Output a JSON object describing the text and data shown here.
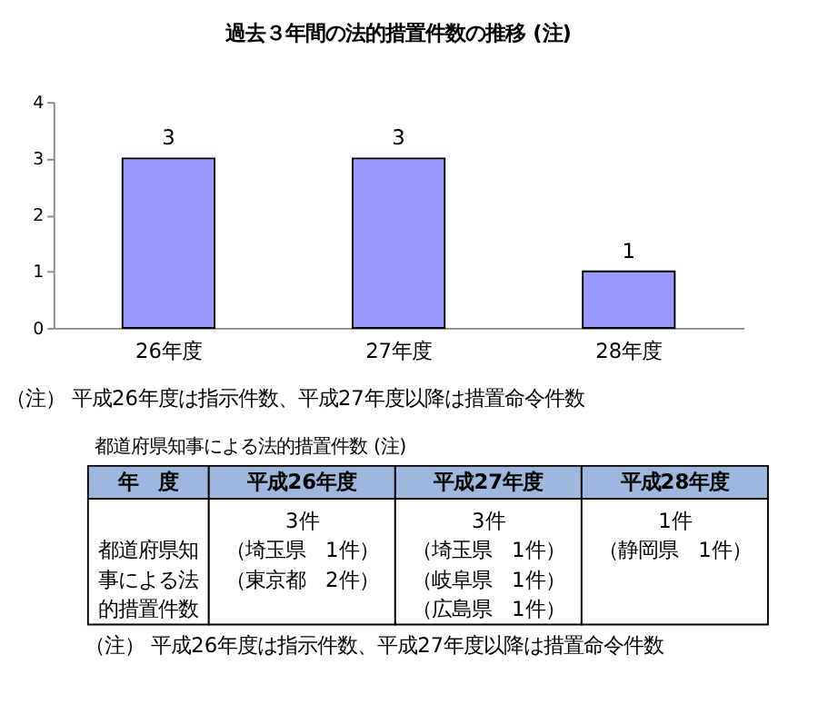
{
  "chart_data": [
    {
      "type": "bar",
      "title": "過去３年間の法的措置件数の推移 (注)",
      "categories": [
        "26年度",
        "27年度",
        "28年度"
      ],
      "values": [
        3,
        3,
        1
      ],
      "color": "#9999ff",
      "ylim": [
        0,
        4
      ],
      "yticks": [
        0,
        1,
        2,
        3,
        4
      ],
      "grid": false,
      "data_labels": true,
      "annotations": [
        "（注） 平成26年度は指示件数、平成27年度以降は措置命令件数"
      ]
    },
    {
      "type": "other",
      "title": "都道府県知事による法的措置件数 (注)",
      "categories": [
        "年　度",
        "平成26年度",
        "平成27年度",
        "平成28年度"
      ],
      "cell_labels": [
        [
          [
            "都道府県知事による法的措置件数"
          ],
          [
            "3件",
            "（埼玉県　1件）",
            "（東京都　2件）"
          ],
          [
            "3件",
            "（埼玉県　1件）",
            "（岐阜県　1件）",
            "（広島県　1件）"
          ],
          [
            "1件",
            "（静岡県　1件）"
          ]
        ]
      ],
      "annotations": [
        "（注） 平成26年度は指示件数、平成27年度以降は措置命令件数"
      ]
    }
  ]
}
